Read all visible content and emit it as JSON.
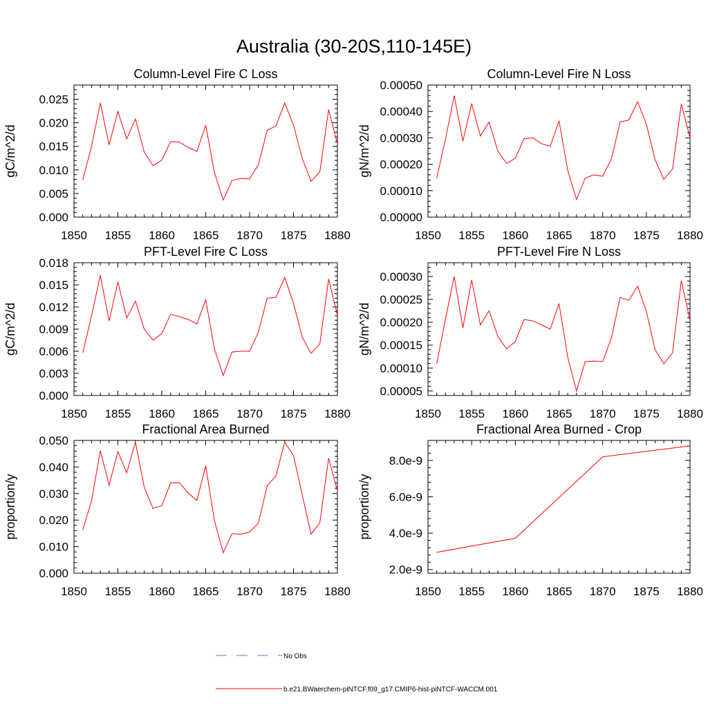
{
  "figure": {
    "title": "Australia (30-20S,110-145E)",
    "legend": [
      {
        "label": "No Obs",
        "color": "#6d6dcc",
        "style": "dashed"
      },
      {
        "label": "b.e21.BWaerchem-piNTCF.f09_g17.CMIP6-hist-piNTCF-WACCM.001",
        "color": "#ff0000",
        "style": "solid"
      }
    ]
  },
  "chart_data": [
    {
      "type": "line",
      "title": "Column-Level Fire C Loss",
      "ylabel": "gC/m^2/d",
      "xlim": [
        1850,
        1880
      ],
      "ylim": [
        0,
        0.028
      ],
      "xticks": [
        1850,
        1855,
        1860,
        1865,
        1870,
        1875,
        1880
      ],
      "xticklabels": [
        "1850",
        "1855",
        "1860",
        "1865",
        "1870",
        "1875",
        "1880"
      ],
      "yticks": [
        0,
        0.005,
        0.01,
        0.015,
        0.02,
        0.025
      ],
      "yticklabels": [
        "0.000",
        "0.005",
        "0.010",
        "0.015",
        "0.020",
        "0.025"
      ],
      "series": [
        {
          "name": "b.e21.BWaerchem-piNTCF.f09_g17.CMIP6-hist-piNTCF-WACCM.001",
          "color": "#ff0000",
          "x": [
            1851,
            1852,
            1853,
            1854,
            1855,
            1856,
            1857,
            1858,
            1859,
            1860,
            1861,
            1862,
            1863,
            1864,
            1865,
            1866,
            1867,
            1868,
            1869,
            1870,
            1871,
            1872,
            1873,
            1874,
            1875,
            1876,
            1877,
            1878,
            1879,
            1880
          ],
          "y": [
            0.0079,
            0.015,
            0.0242,
            0.0153,
            0.0224,
            0.0166,
            0.0208,
            0.0138,
            0.0109,
            0.0121,
            0.016,
            0.0159,
            0.0148,
            0.0139,
            0.0195,
            0.0094,
            0.0036,
            0.0078,
            0.0082,
            0.0081,
            0.0111,
            0.0184,
            0.0193,
            0.0242,
            0.0195,
            0.0124,
            0.0076,
            0.0096,
            0.0228,
            0.0155
          ]
        }
      ]
    },
    {
      "type": "line",
      "title": "Column-Level Fire N Loss",
      "ylabel": "gN/m^2/d",
      "xlim": [
        1850,
        1880
      ],
      "ylim": [
        0,
        0.0005
      ],
      "xticks": [
        1850,
        1855,
        1860,
        1865,
        1870,
        1875,
        1880
      ],
      "xticklabels": [
        "1850",
        "1855",
        "1860",
        "1865",
        "1870",
        "1875",
        "1880"
      ],
      "yticks": [
        0,
        0.0001,
        0.0002,
        0.0003,
        0.0004,
        0.0005
      ],
      "yticklabels": [
        "0.00000",
        "0.00010",
        "0.00020",
        "0.00030",
        "0.00040",
        "0.00050"
      ],
      "series": [
        {
          "name": "b.e21.BWaerchem-piNTCF.f09_g17.CMIP6-hist-piNTCF-WACCM.001",
          "color": "#ff0000",
          "x": [
            1851,
            1852,
            1853,
            1854,
            1855,
            1856,
            1857,
            1858,
            1859,
            1860,
            1861,
            1862,
            1863,
            1864,
            1865,
            1866,
            1867,
            1868,
            1869,
            1870,
            1871,
            1872,
            1873,
            1874,
            1875,
            1876,
            1877,
            1878,
            1879,
            1880
          ],
          "y": [
            0.000147,
            0.000295,
            0.00046,
            0.000288,
            0.00043,
            0.000307,
            0.00036,
            0.00025,
            0.000203,
            0.000223,
            0.000297,
            0.0003,
            0.000278,
            0.000268,
            0.000365,
            0.000177,
            6.6e-05,
            0.000148,
            0.00016,
            0.000155,
            0.00022,
            0.00036,
            0.000368,
            0.000437,
            0.000352,
            0.000217,
            0.000143,
            0.000182,
            0.000428,
            0.0003
          ]
        }
      ]
    },
    {
      "type": "line",
      "title": "PFT-Level Fire C Loss",
      "ylabel": "gC/m^2/d",
      "xlim": [
        1850,
        1880
      ],
      "ylim": [
        0,
        0.018
      ],
      "xticks": [
        1850,
        1855,
        1860,
        1865,
        1870,
        1875,
        1880
      ],
      "xticklabels": [
        "1850",
        "1855",
        "1860",
        "1865",
        "1870",
        "1875",
        "1880"
      ],
      "yticks": [
        0,
        0.003,
        0.006,
        0.009,
        0.012,
        0.015,
        0.018
      ],
      "yticklabels": [
        "0.000",
        "0.003",
        "0.006",
        "0.009",
        "0.012",
        "0.015",
        "0.018"
      ],
      "series": [
        {
          "name": "b.e21.BWaerchem-piNTCF.f09_g17.CMIP6-hist-piNTCF-WACCM.001",
          "color": "#ff0000",
          "x": [
            1851,
            1852,
            1853,
            1854,
            1855,
            1856,
            1857,
            1858,
            1859,
            1860,
            1861,
            1862,
            1863,
            1864,
            1865,
            1866,
            1867,
            1868,
            1869,
            1870,
            1871,
            1872,
            1873,
            1874,
            1875,
            1876,
            1877,
            1878,
            1879,
            1880
          ],
          "y": [
            0.0058,
            0.0108,
            0.0163,
            0.0101,
            0.0154,
            0.0105,
            0.0128,
            0.009,
            0.0075,
            0.0084,
            0.011,
            0.0107,
            0.0103,
            0.0097,
            0.013,
            0.0063,
            0.0027,
            0.0059,
            0.006,
            0.006,
            0.0086,
            0.0132,
            0.0133,
            0.016,
            0.0125,
            0.0079,
            0.0057,
            0.007,
            0.0158,
            0.0109
          ]
        }
      ]
    },
    {
      "type": "line",
      "title": "PFT-Level Fire N Loss",
      "ylabel": "gN/m^2/d",
      "xlim": [
        1850,
        1880
      ],
      "ylim": [
        4e-05,
        0.00033
      ],
      "xticks": [
        1850,
        1855,
        1860,
        1865,
        1870,
        1875,
        1880
      ],
      "xticklabels": [
        "1850",
        "1855",
        "1860",
        "1865",
        "1870",
        "1875",
        "1880"
      ],
      "yticks": [
        5e-05,
        0.0001,
        0.00015,
        0.0002,
        0.00025,
        0.0003
      ],
      "yticklabels": [
        "0.00005",
        "0.00010",
        "0.00015",
        "0.00020",
        "0.00025",
        "0.00030"
      ],
      "series": [
        {
          "name": "b.e21.BWaerchem-piNTCF.f09_g17.CMIP6-hist-piNTCF-WACCM.001",
          "color": "#ff0000",
          "x": [
            1851,
            1852,
            1853,
            1854,
            1855,
            1856,
            1857,
            1858,
            1859,
            1860,
            1861,
            1862,
            1863,
            1864,
            1865,
            1866,
            1867,
            1868,
            1869,
            1870,
            1871,
            1872,
            1873,
            1874,
            1875,
            1876,
            1877,
            1878,
            1879,
            1880
          ],
          "y": [
            0.000109,
            0.000207,
            0.0003,
            0.000188,
            0.000292,
            0.000194,
            0.000225,
            0.000169,
            0.000142,
            0.000158,
            0.000206,
            0.000203,
            0.000194,
            0.000185,
            0.000241,
            0.000124,
            5e-05,
            0.000114,
            0.000115,
            0.000114,
            0.000166,
            0.000254,
            0.000248,
            0.000279,
            0.000224,
            0.00014,
            0.000109,
            0.000133,
            0.000291,
            0.000204
          ]
        }
      ]
    },
    {
      "type": "line",
      "title": "Fractional Area Burned",
      "ylabel": "proportion/y",
      "xlim": [
        1850,
        1880
      ],
      "ylim": [
        0,
        0.05
      ],
      "xticks": [
        1850,
        1855,
        1860,
        1865,
        1870,
        1875,
        1880
      ],
      "xticklabels": [
        "1850",
        "1855",
        "1860",
        "1865",
        "1870",
        "1875",
        "1880"
      ],
      "yticks": [
        0,
        0.01,
        0.02,
        0.03,
        0.04,
        0.05
      ],
      "yticklabels": [
        "0.000",
        "0.010",
        "0.020",
        "0.030",
        "0.040",
        "0.050"
      ],
      "series": [
        {
          "name": "b.e21.BWaerchem-piNTCF.f09_g17.CMIP6-hist-piNTCF-WACCM.001",
          "color": "#ff0000",
          "x": [
            1851,
            1852,
            1853,
            1854,
            1855,
            1856,
            1857,
            1858,
            1859,
            1860,
            1861,
            1862,
            1863,
            1864,
            1865,
            1866,
            1867,
            1868,
            1869,
            1870,
            1871,
            1872,
            1873,
            1874,
            1875,
            1876,
            1877,
            1878,
            1879,
            1880
          ],
          "y": [
            0.0163,
            0.0273,
            0.0462,
            0.0332,
            0.0458,
            0.0378,
            0.0493,
            0.0324,
            0.0244,
            0.0254,
            0.034,
            0.0341,
            0.0302,
            0.0274,
            0.0405,
            0.0197,
            0.0077,
            0.0149,
            0.0147,
            0.0155,
            0.0188,
            0.0329,
            0.0367,
            0.0494,
            0.0443,
            0.0294,
            0.0147,
            0.019,
            0.0433,
            0.031
          ]
        }
      ]
    },
    {
      "type": "line",
      "title": "Fractional Area Burned - Crop",
      "ylabel": "proportion/y",
      "xlim": [
        1850,
        1880
      ],
      "ylim": [
        1.8e-09,
        9.1e-09
      ],
      "xticks": [
        1850,
        1855,
        1860,
        1865,
        1870,
        1875,
        1880
      ],
      "xticklabels": [
        "1850",
        "1855",
        "1860",
        "1865",
        "1870",
        "1875",
        "1880"
      ],
      "yticks": [
        2e-09,
        4e-09,
        6e-09,
        8e-09
      ],
      "yticklabels": [
        "2.0e-9",
        "4.0e-9",
        "6.0e-9",
        "8.0e-9"
      ],
      "series": [
        {
          "name": "b.e21.BWaerchem-piNTCF.f09_g17.CMIP6-hist-piNTCF-WACCM.001",
          "color": "#ff0000",
          "x": [
            1851,
            1860,
            1870,
            1880
          ],
          "y": [
            2.95e-09,
            3.72e-09,
            8.2e-09,
            8.8e-09
          ]
        }
      ]
    }
  ]
}
